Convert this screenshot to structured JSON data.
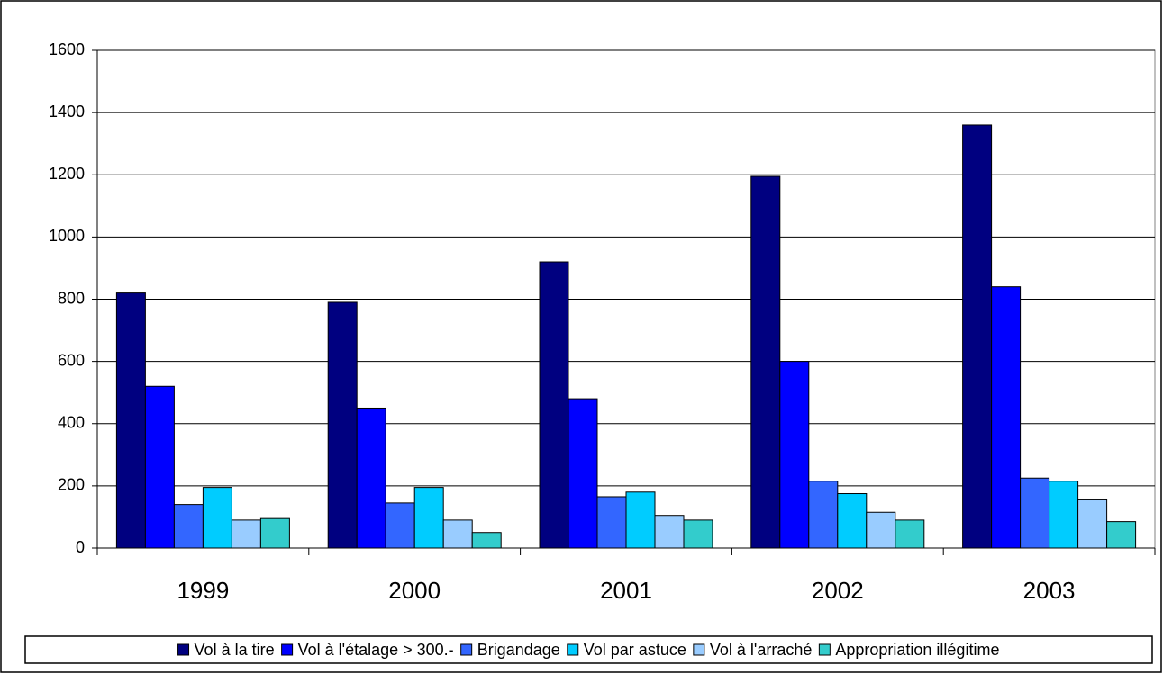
{
  "chart_data": {
    "type": "bar",
    "categories": [
      "1999",
      "2000",
      "2001",
      "2002",
      "2003"
    ],
    "series": [
      {
        "name": "Vol à la tire",
        "color": "#000080",
        "values": [
          820,
          790,
          920,
          1195,
          1360
        ]
      },
      {
        "name": "Vol à l'étalage > 300.-",
        "color": "#0000ff",
        "values": [
          520,
          450,
          480,
          600,
          840
        ]
      },
      {
        "name": "Brigandage",
        "color": "#3366ff",
        "values": [
          140,
          145,
          165,
          215,
          225
        ]
      },
      {
        "name": "Vol par astuce",
        "color": "#00ccff",
        "values": [
          195,
          195,
          180,
          175,
          215
        ]
      },
      {
        "name": "Vol à l'arraché",
        "color": "#99ccff",
        "values": [
          90,
          90,
          105,
          115,
          155
        ]
      },
      {
        "name": "Appropriation illégitime",
        "color": "#33cccc",
        "values": [
          95,
          50,
          90,
          90,
          85
        ]
      }
    ],
    "ylim": [
      0,
      1600
    ],
    "yticks": [
      0,
      200,
      400,
      600,
      800,
      1000,
      1200,
      1400,
      1600
    ],
    "grid": true,
    "legend": "bottom"
  }
}
